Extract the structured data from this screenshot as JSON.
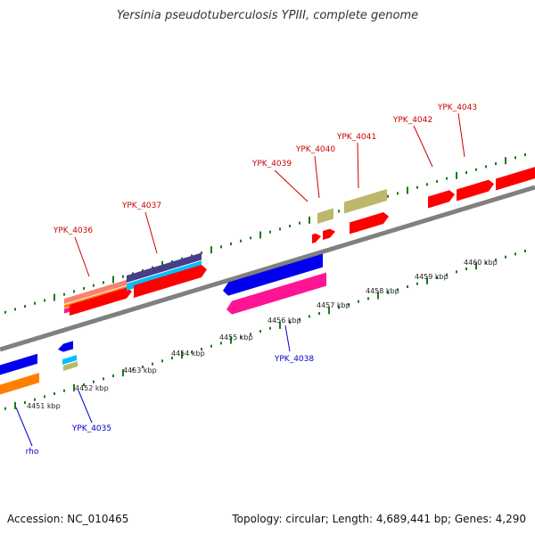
{
  "title": "Yersinia pseudotuberculosis YPIII, complete genome",
  "accession": "Accession: NC_010465",
  "summary": "Topology: circular; Length: 4,689,441 bp; Genes: 4,290",
  "colors": {
    "backbone": "#808080",
    "tick": "#1a7a1a",
    "label_forward": "#cc0000",
    "label_reverse": "#0000cc",
    "red": "#ff0000",
    "blue": "#0000ee",
    "orange": "#ff8000",
    "pink": "#ff1493",
    "cyan": "#00bfff",
    "purple": "#483d8b",
    "tan": "#bdb76b",
    "salmon": "#fa8072"
  },
  "scale_labels": [
    "4451 kbp",
    "4452 kbp",
    "4453 kbp",
    "4454 kbp",
    "4455 kbp",
    "4456 kbp",
    "4457 kbp",
    "4458 kbp",
    "4459 kbp",
    "4460 kbp"
  ],
  "forward_labels": [
    "YPK_4036",
    "YPK_4037",
    "YPK_4039",
    "YPK_4040",
    "YPK_4041",
    "YPK_4042",
    "YPK_4043"
  ],
  "reverse_labels": [
    "rho",
    "YPK_4035",
    "YPK_4038"
  ]
}
